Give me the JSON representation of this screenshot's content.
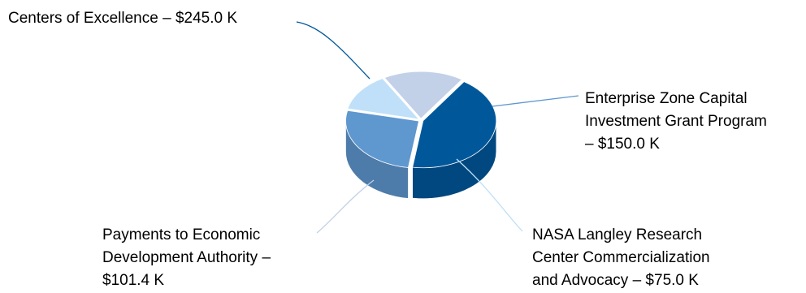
{
  "chart_data": {
    "type": "pie",
    "variant": "3d-exploded",
    "title": "",
    "values": [
      245.0,
      150.0,
      75.0,
      101.4
    ],
    "categories": [
      "Centers of Excellence",
      "Enterprise Zone Capital Investment Grant Program",
      "NASA Langley Research Center Commercialization and Advocacy",
      "Payments to Economic Development Authority"
    ],
    "slices": [
      {
        "label": "Centers of Excellence",
        "value": 245.0,
        "label_lines": [
          "Centers of Excellence – $245.0 K"
        ],
        "color": "#00589b"
      },
      {
        "label": "Enterprise Zone Capital Investment Grant Program",
        "value": 150.0,
        "label_lines": [
          "Enterprise Zone Capital",
          "Investment Grant Program",
          "– $150.0 K"
        ],
        "color": "#5f97cf"
      },
      {
        "label": "NASA Langley Research Center Commercialization and Advocacy",
        "value": 75.0,
        "label_lines": [
          "NASA Langley Research",
          "Center Commercialization",
          "and Advocacy – $75.0 K"
        ],
        "color": "#bfe0f8"
      },
      {
        "label": "Payments to Economic Development Authority",
        "value": 101.4,
        "label_lines": [
          "Payments to Economic",
          "Development Authority –",
          "$101.4 K"
        ],
        "color": "#c2d0e8"
      }
    ],
    "legend": "none"
  }
}
